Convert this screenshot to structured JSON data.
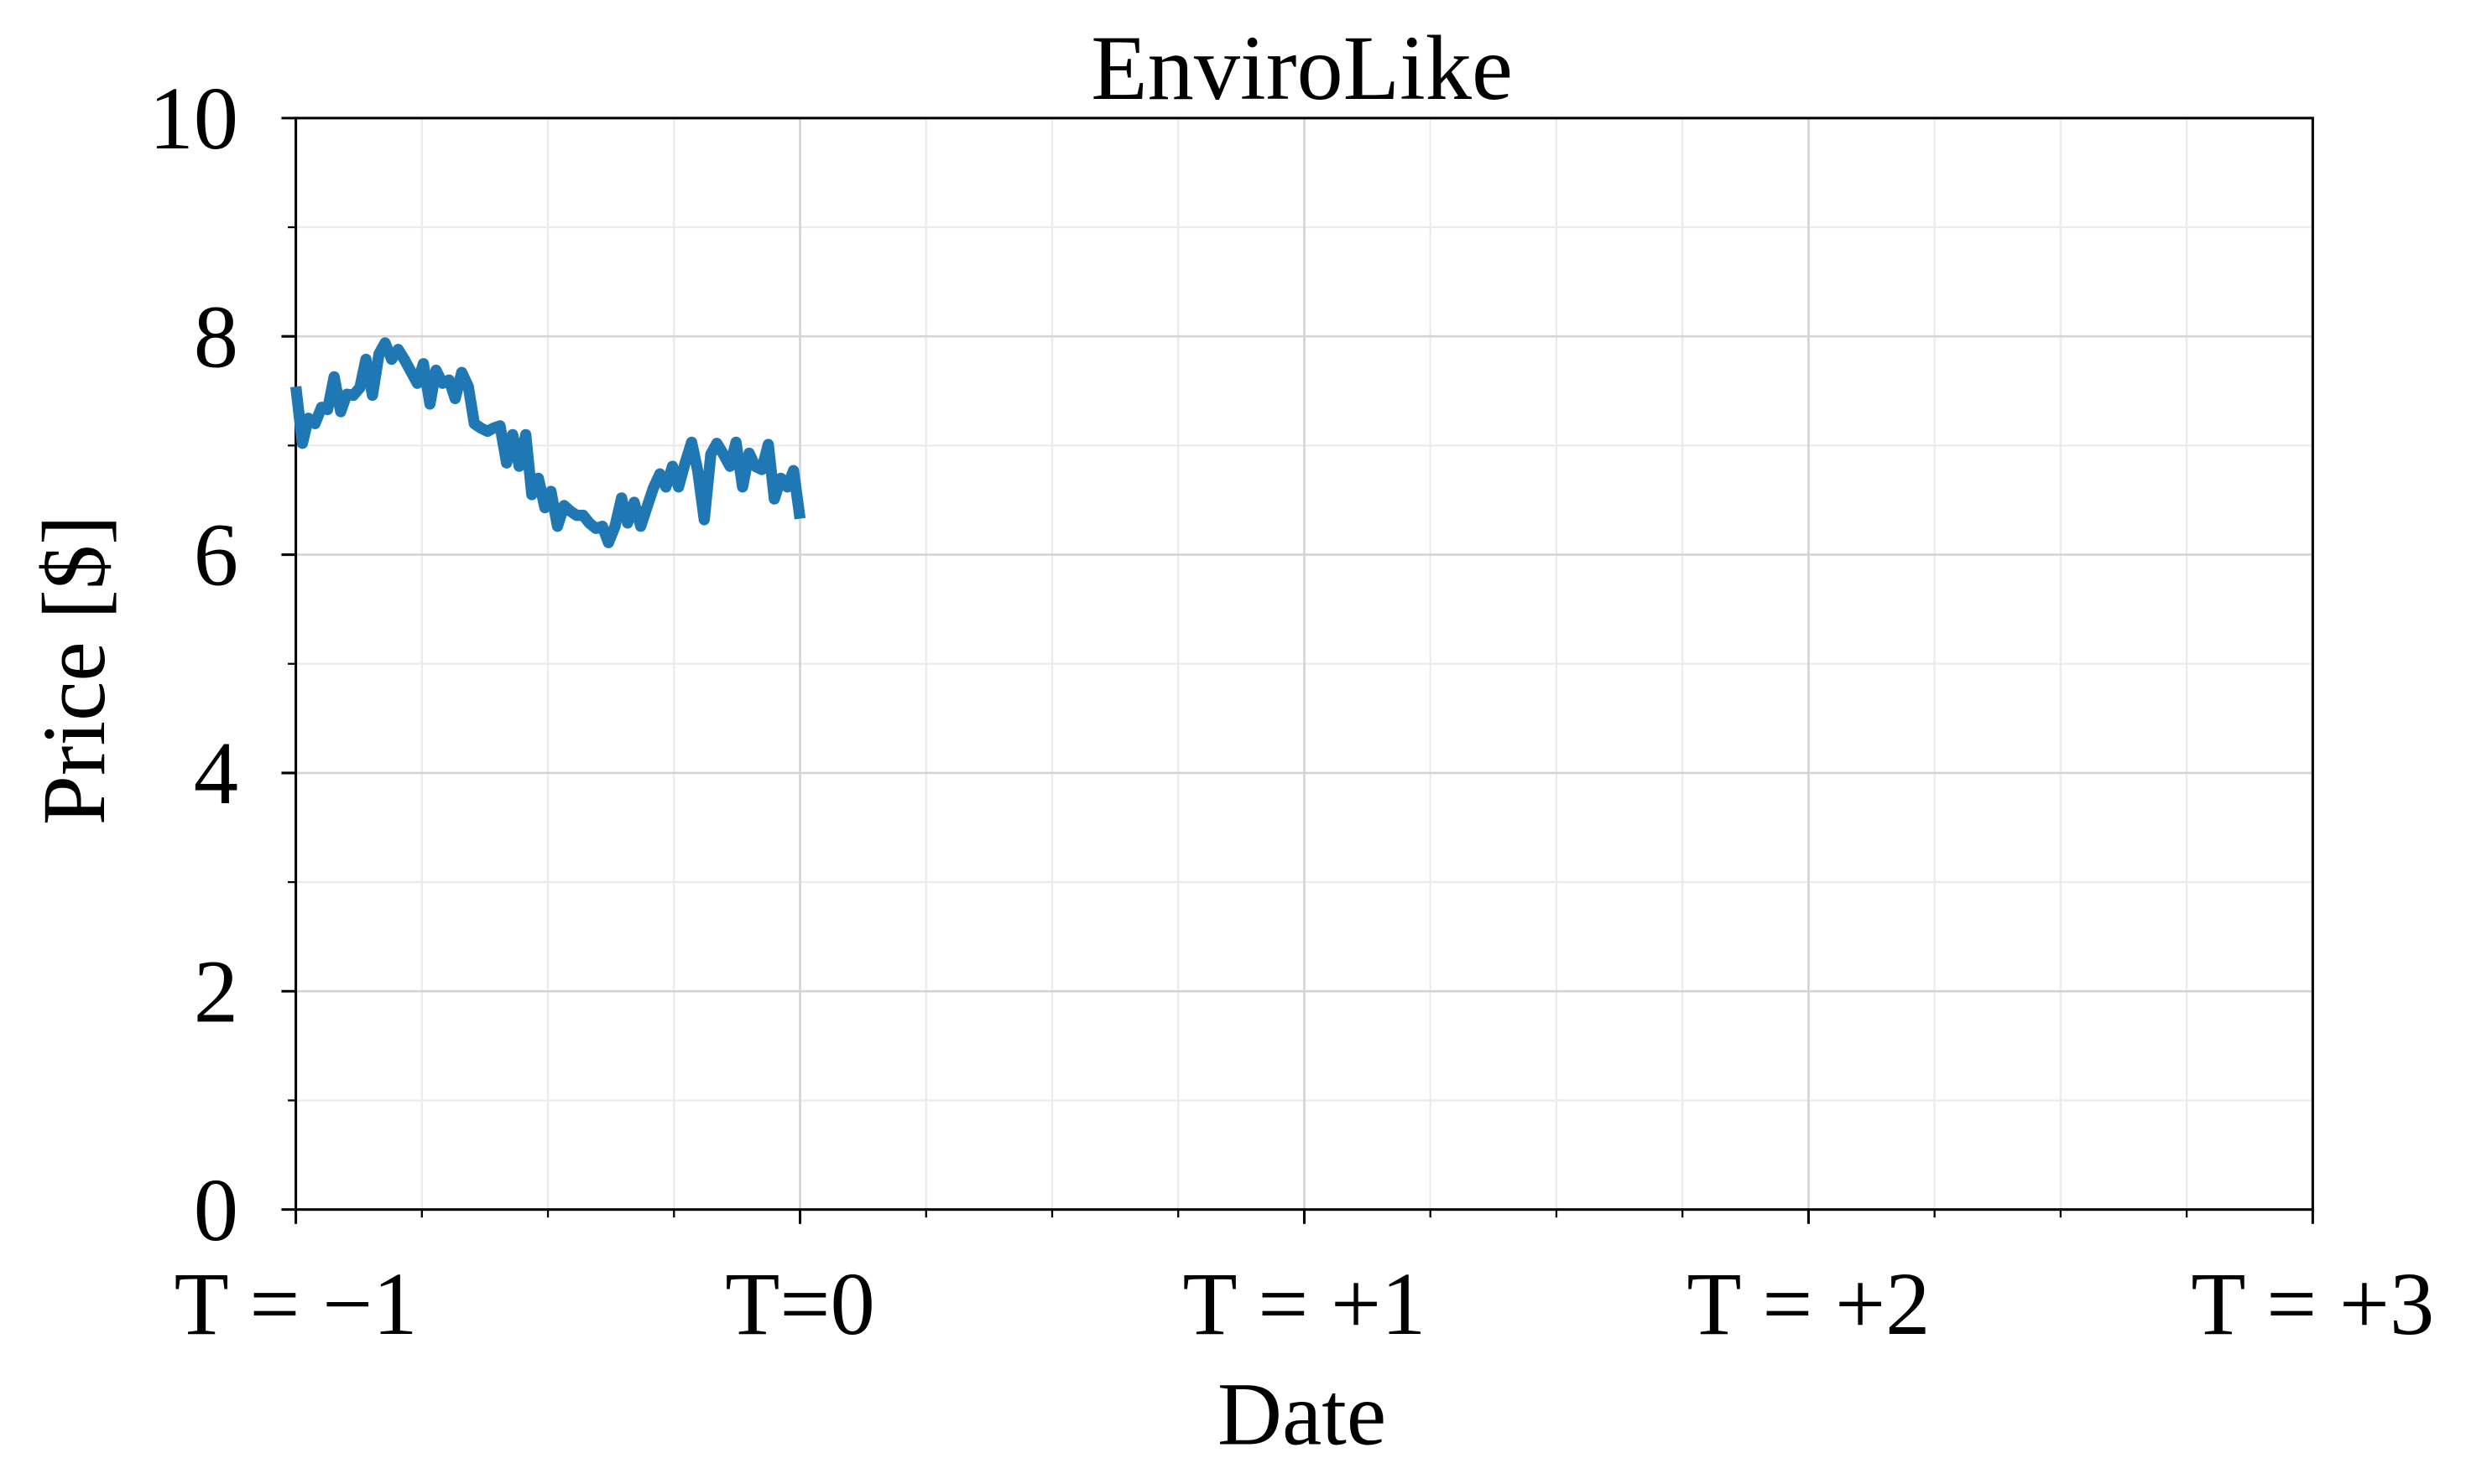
{
  "chart_data": {
    "type": "line",
    "title": "EnviroLike",
    "x_label": "Date",
    "y_label": "Price [$]",
    "x": [
      -1,
      -0.987,
      -0.975,
      -0.962,
      -0.949,
      -0.937,
      -0.924,
      -0.911,
      -0.899,
      -0.886,
      -0.873,
      -0.861,
      -0.848,
      -0.835,
      -0.823,
      -0.81,
      -0.797,
      -0.785,
      -0.772,
      -0.759,
      -0.747,
      -0.734,
      -0.722,
      -0.709,
      -0.696,
      -0.684,
      -0.671,
      -0.658,
      -0.646,
      -0.633,
      -0.62,
      -0.608,
      -0.595,
      -0.582,
      -0.57,
      -0.557,
      -0.544,
      -0.532,
      -0.519,
      -0.506,
      -0.494,
      -0.481,
      -0.468,
      -0.456,
      -0.443,
      -0.43,
      -0.418,
      -0.405,
      -0.392,
      -0.38,
      -0.367,
      -0.354,
      -0.342,
      -0.329,
      -0.316,
      -0.304,
      -0.291,
      -0.278,
      -0.266,
      -0.253,
      -0.241,
      -0.228,
      -0.215,
      -0.203,
      -0.19,
      -0.177,
      -0.165,
      -0.152,
      -0.139,
      -0.127,
      -0.114,
      -0.101,
      -0.089,
      -0.076,
      -0.063,
      -0.051,
      -0.038,
      -0.025,
      -0.013,
      0
    ],
    "values": [
      7.54,
      7.02,
      7.25,
      7.2,
      7.35,
      7.33,
      7.63,
      7.31,
      7.47,
      7.46,
      7.53,
      7.79,
      7.46,
      7.84,
      7.94,
      7.79,
      7.88,
      7.79,
      7.68,
      7.57,
      7.75,
      7.38,
      7.69,
      7.57,
      7.6,
      7.43,
      7.67,
      7.54,
      7.2,
      7.16,
      7.13,
      7.16,
      7.18,
      6.84,
      7.1,
      6.81,
      7.1,
      6.55,
      6.7,
      6.43,
      6.58,
      6.26,
      6.45,
      6.4,
      6.36,
      6.36,
      6.29,
      6.24,
      6.26,
      6.11,
      6.26,
      6.52,
      6.29,
      6.48,
      6.26,
      6.43,
      6.61,
      6.74,
      6.62,
      6.81,
      6.62,
      6.84,
      7.03,
      6.77,
      6.32,
      6.92,
      7.02,
      6.92,
      6.81,
      7.03,
      6.62,
      6.93,
      6.81,
      6.78,
      7.01,
      6.51,
      6.7,
      6.62,
      6.77,
      6.33
    ],
    "color": "#1f77b4",
    "xlim": [
      -1,
      3
    ],
    "xticks": [
      {
        "value": -1,
        "label": "T = −1"
      },
      {
        "value": 0,
        "label": "T=0"
      },
      {
        "value": 1,
        "label": "T = +1"
      },
      {
        "value": 2,
        "label": "T = +2"
      },
      {
        "value": 3,
        "label": "T = +3"
      }
    ],
    "ylim": [
      0,
      10
    ],
    "yticks": [
      0,
      2,
      4,
      6,
      8,
      10
    ],
    "grid": true
  }
}
